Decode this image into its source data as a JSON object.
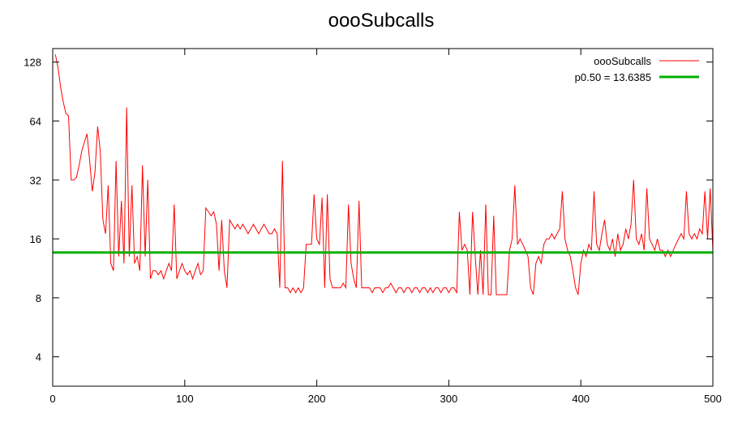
{
  "chart_data": {
    "type": "line",
    "title": "oooSubcalls",
    "xlabel": "",
    "ylabel": "",
    "xlim": [
      0,
      500
    ],
    "ylim": [
      2.83,
      150
    ],
    "yscale": "log2",
    "grid": false,
    "legend_position": "top-right",
    "x_ticks": [
      0,
      100,
      200,
      300,
      400,
      500
    ],
    "x_tick_labels": [
      "0",
      "100",
      "200",
      "300",
      "400",
      "500"
    ],
    "y_ticks": [
      4,
      8,
      16,
      32,
      64,
      128
    ],
    "y_tick_labels": [
      "4",
      "8",
      "16",
      "32",
      "64",
      "128"
    ],
    "series": [
      {
        "name": "oooSubcalls",
        "color": "#ff0000",
        "points": [
          [
            2,
            140
          ],
          [
            4,
            120
          ],
          [
            6,
            95
          ],
          [
            8,
            80
          ],
          [
            10,
            70
          ],
          [
            12,
            68
          ],
          [
            14,
            32
          ],
          [
            16,
            32
          ],
          [
            18,
            33
          ],
          [
            20,
            38
          ],
          [
            22,
            45
          ],
          [
            24,
            50
          ],
          [
            26,
            55
          ],
          [
            28,
            40
          ],
          [
            30,
            28
          ],
          [
            32,
            35
          ],
          [
            34,
            60
          ],
          [
            36,
            45
          ],
          [
            38,
            20
          ],
          [
            40,
            17
          ],
          [
            42,
            30
          ],
          [
            44,
            12
          ],
          [
            46,
            11
          ],
          [
            48,
            40
          ],
          [
            50,
            13
          ],
          [
            52,
            25
          ],
          [
            54,
            12
          ],
          [
            56,
            75
          ],
          [
            58,
            13
          ],
          [
            60,
            30
          ],
          [
            62,
            12
          ],
          [
            64,
            13
          ],
          [
            66,
            11
          ],
          [
            68,
            38
          ],
          [
            70,
            13
          ],
          [
            72,
            32
          ],
          [
            74,
            10
          ],
          [
            76,
            11
          ],
          [
            78,
            11
          ],
          [
            80,
            10.5
          ],
          [
            82,
            11
          ],
          [
            84,
            10
          ],
          [
            86,
            11
          ],
          [
            88,
            12
          ],
          [
            90,
            11
          ],
          [
            92,
            24
          ],
          [
            94,
            10
          ],
          [
            96,
            11
          ],
          [
            98,
            12
          ],
          [
            100,
            11
          ],
          [
            102,
            10.5
          ],
          [
            104,
            11
          ],
          [
            106,
            10
          ],
          [
            108,
            11
          ],
          [
            110,
            12
          ],
          [
            112,
            10.5
          ],
          [
            114,
            11
          ],
          [
            116,
            23
          ],
          [
            118,
            22
          ],
          [
            120,
            21
          ],
          [
            122,
            22
          ],
          [
            124,
            19
          ],
          [
            126,
            11
          ],
          [
            128,
            20
          ],
          [
            130,
            11
          ],
          [
            132,
            9
          ],
          [
            134,
            20
          ],
          [
            136,
            19
          ],
          [
            138,
            18
          ],
          [
            140,
            19
          ],
          [
            142,
            18
          ],
          [
            144,
            19
          ],
          [
            146,
            18
          ],
          [
            148,
            17
          ],
          [
            150,
            18
          ],
          [
            152,
            19
          ],
          [
            154,
            18
          ],
          [
            156,
            17
          ],
          [
            158,
            18
          ],
          [
            160,
            19
          ],
          [
            162,
            18
          ],
          [
            164,
            17
          ],
          [
            166,
            17
          ],
          [
            168,
            18
          ],
          [
            170,
            17
          ],
          [
            172,
            9
          ],
          [
            174,
            40
          ],
          [
            176,
            9
          ],
          [
            178,
            9
          ],
          [
            180,
            8.5
          ],
          [
            182,
            9
          ],
          [
            184,
            8.5
          ],
          [
            186,
            9
          ],
          [
            188,
            8.5
          ],
          [
            190,
            9
          ],
          [
            192,
            15
          ],
          [
            194,
            15
          ],
          [
            196,
            15
          ],
          [
            198,
            27
          ],
          [
            200,
            16
          ],
          [
            202,
            15
          ],
          [
            204,
            26
          ],
          [
            206,
            9
          ],
          [
            208,
            27
          ],
          [
            210,
            10
          ],
          [
            212,
            9
          ],
          [
            214,
            9
          ],
          [
            216,
            9
          ],
          [
            218,
            9
          ],
          [
            220,
            9.5
          ],
          [
            222,
            9
          ],
          [
            224,
            24
          ],
          [
            226,
            12
          ],
          [
            228,
            10
          ],
          [
            230,
            9
          ],
          [
            232,
            25
          ],
          [
            234,
            9
          ],
          [
            236,
            9
          ],
          [
            238,
            9
          ],
          [
            240,
            9
          ],
          [
            242,
            8.5
          ],
          [
            244,
            9
          ],
          [
            246,
            9
          ],
          [
            248,
            9
          ],
          [
            250,
            8.5
          ],
          [
            252,
            9
          ],
          [
            254,
            9
          ],
          [
            256,
            9.5
          ],
          [
            258,
            9
          ],
          [
            260,
            8.5
          ],
          [
            262,
            9
          ],
          [
            264,
            9
          ],
          [
            266,
            8.5
          ],
          [
            268,
            9
          ],
          [
            270,
            9
          ],
          [
            272,
            8.5
          ],
          [
            274,
            9
          ],
          [
            276,
            9
          ],
          [
            278,
            8.5
          ],
          [
            280,
            9
          ],
          [
            282,
            9
          ],
          [
            284,
            8.5
          ],
          [
            286,
            9
          ],
          [
            288,
            8.5
          ],
          [
            290,
            9
          ],
          [
            292,
            9
          ],
          [
            294,
            8.5
          ],
          [
            296,
            9
          ],
          [
            298,
            9
          ],
          [
            300,
            8.5
          ],
          [
            302,
            9
          ],
          [
            304,
            9
          ],
          [
            306,
            8.5
          ],
          [
            308,
            22
          ],
          [
            310,
            14
          ],
          [
            312,
            15
          ],
          [
            314,
            14
          ],
          [
            316,
            8.3
          ],
          [
            318,
            22
          ],
          [
            320,
            13
          ],
          [
            322,
            8.3
          ],
          [
            324,
            14
          ],
          [
            326,
            8.3
          ],
          [
            328,
            24
          ],
          [
            330,
            8.3
          ],
          [
            332,
            8.3
          ],
          [
            334,
            21
          ],
          [
            336,
            8.3
          ],
          [
            338,
            8.3
          ],
          [
            340,
            8.3
          ],
          [
            342,
            8.3
          ],
          [
            344,
            8.3
          ],
          [
            346,
            14
          ],
          [
            348,
            16
          ],
          [
            350,
            30
          ],
          [
            352,
            15
          ],
          [
            354,
            16
          ],
          [
            356,
            15
          ],
          [
            358,
            14
          ],
          [
            360,
            13
          ],
          [
            362,
            9
          ],
          [
            364,
            8.3
          ],
          [
            366,
            12
          ],
          [
            368,
            13
          ],
          [
            370,
            12
          ],
          [
            372,
            15
          ],
          [
            374,
            16
          ],
          [
            376,
            16
          ],
          [
            378,
            17
          ],
          [
            380,
            16
          ],
          [
            382,
            17
          ],
          [
            384,
            18
          ],
          [
            386,
            28
          ],
          [
            388,
            16
          ],
          [
            390,
            14
          ],
          [
            392,
            13
          ],
          [
            394,
            11
          ],
          [
            396,
            9
          ],
          [
            398,
            8.3
          ],
          [
            400,
            12
          ],
          [
            402,
            14
          ],
          [
            404,
            13
          ],
          [
            406,
            15
          ],
          [
            408,
            14
          ],
          [
            410,
            28
          ],
          [
            412,
            15
          ],
          [
            414,
            14
          ],
          [
            416,
            17
          ],
          [
            418,
            20
          ],
          [
            420,
            15
          ],
          [
            422,
            14
          ],
          [
            424,
            16
          ],
          [
            426,
            13
          ],
          [
            428,
            17
          ],
          [
            430,
            14
          ],
          [
            432,
            15
          ],
          [
            434,
            18
          ],
          [
            436,
            16
          ],
          [
            438,
            19
          ],
          [
            440,
            32
          ],
          [
            442,
            16
          ],
          [
            444,
            15
          ],
          [
            446,
            17
          ],
          [
            448,
            14
          ],
          [
            450,
            29
          ],
          [
            452,
            16
          ],
          [
            454,
            15
          ],
          [
            456,
            14
          ],
          [
            458,
            16
          ],
          [
            460,
            14
          ],
          [
            462,
            14
          ],
          [
            464,
            13
          ],
          [
            466,
            14
          ],
          [
            468,
            13
          ],
          [
            470,
            14
          ],
          [
            472,
            15
          ],
          [
            474,
            16
          ],
          [
            476,
            17
          ],
          [
            478,
            16
          ],
          [
            480,
            28
          ],
          [
            482,
            17
          ],
          [
            484,
            16
          ],
          [
            486,
            17
          ],
          [
            488,
            16
          ],
          [
            490,
            18
          ],
          [
            492,
            17
          ],
          [
            494,
            28
          ],
          [
            496,
            16
          ],
          [
            498,
            29
          ],
          [
            500,
            14
          ]
        ]
      },
      {
        "name": "p0.50 = 13.6385",
        "color": "#00b000",
        "constant": 13.6385
      }
    ]
  }
}
